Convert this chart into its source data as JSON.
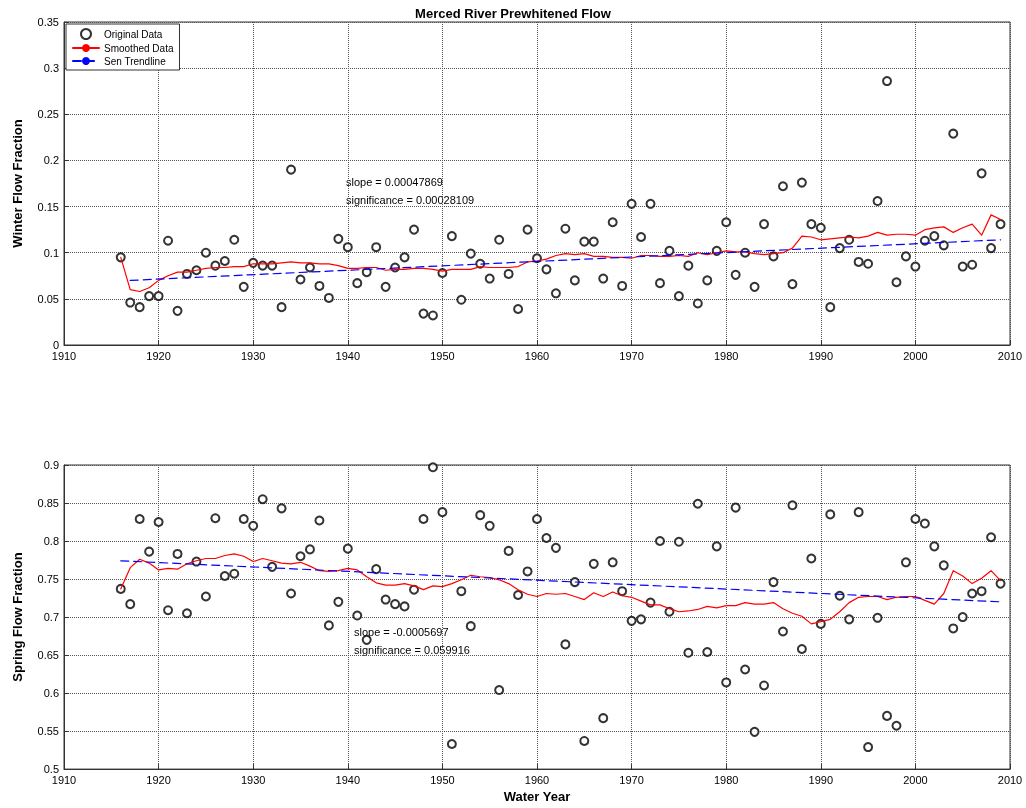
{
  "chart_data": [
    {
      "type": "scatter",
      "title": "Merced River Prewhitened Flow",
      "ylabel": "Winter Flow Fraction",
      "x": [
        1916,
        1917,
        1918,
        1919,
        1920,
        1921,
        1922,
        1923,
        1924,
        1925,
        1926,
        1927,
        1928,
        1929,
        1930,
        1931,
        1932,
        1933,
        1934,
        1935,
        1936,
        1937,
        1938,
        1939,
        1940,
        1941,
        1942,
        1943,
        1944,
        1945,
        1946,
        1947,
        1948,
        1949,
        1950,
        1951,
        1952,
        1953,
        1954,
        1955,
        1956,
        1957,
        1958,
        1959,
        1960,
        1961,
        1962,
        1963,
        1964,
        1965,
        1966,
        1967,
        1968,
        1969,
        1970,
        1971,
        1972,
        1973,
        1974,
        1975,
        1976,
        1977,
        1978,
        1979,
        1980,
        1981,
        1982,
        1983,
        1984,
        1985,
        1986,
        1987,
        1988,
        1989,
        1990,
        1991,
        1992,
        1993,
        1994,
        1995,
        1996,
        1997,
        1998,
        1999,
        2000,
        2001,
        2002,
        2003,
        2004,
        2005,
        2006,
        2007,
        2008,
        2009
      ],
      "series": [
        {
          "name": "Original Data",
          "marker": "circle",
          "color": "#000000",
          "values": [
            0.095,
            0.046,
            0.041,
            0.053,
            0.053,
            0.113,
            0.037,
            0.077,
            0.081,
            0.1,
            0.086,
            0.091,
            0.114,
            0.063,
            0.089,
            0.086,
            0.086,
            0.041,
            0.19,
            0.071,
            0.084,
            0.064,
            0.051,
            0.115,
            0.106,
            0.067,
            0.079,
            0.106,
            0.063,
            0.084,
            0.095,
            0.125,
            0.034,
            0.032,
            0.078,
            0.118,
            0.049,
            0.099,
            0.088,
            0.072,
            0.114,
            0.077,
            0.039,
            0.125,
            0.094,
            0.082,
            0.056,
            0.126,
            0.07,
            0.112,
            0.112,
            0.072,
            0.133,
            0.064,
            0.153,
            0.117,
            0.153,
            0.067,
            0.102,
            0.053,
            0.086,
            0.045,
            0.07,
            0.102,
            0.133,
            0.076,
            0.1,
            0.063,
            0.131,
            0.096,
            0.172,
            0.066,
            0.176,
            0.131,
            0.127,
            0.041,
            0.105,
            0.114,
            0.09,
            0.088,
            0.156,
            0.286,
            0.068,
            0.096,
            0.085,
            0.113,
            0.118,
            0.108,
            0.229,
            0.085,
            0.087,
            0.186,
            0.105,
            0.131
          ]
        },
        {
          "name": "Smoothed Data",
          "type": "line",
          "marker": "none",
          "line_style": "solid",
          "color": "#ff0000",
          "values": [
            0.095,
            0.06,
            0.058,
            0.062,
            0.07,
            0.075,
            0.079,
            0.079,
            0.081,
            0.083,
            0.084,
            0.084,
            0.085,
            0.085,
            0.088,
            0.088,
            0.088,
            0.089,
            0.09,
            0.089,
            0.089,
            0.088,
            0.088,
            0.086,
            0.083,
            0.083,
            0.084,
            0.084,
            0.081,
            0.082,
            0.082,
            0.083,
            0.083,
            0.082,
            0.08,
            0.082,
            0.082,
            0.082,
            0.085,
            0.084,
            0.084,
            0.084,
            0.085,
            0.09,
            0.091,
            0.093,
            0.097,
            0.099,
            0.098,
            0.099,
            0.096,
            0.096,
            0.095,
            0.095,
            0.094,
            0.097,
            0.097,
            0.096,
            0.096,
            0.097,
            0.096,
            0.1,
            0.098,
            0.1,
            0.102,
            0.101,
            0.101,
            0.099,
            0.098,
            0.099,
            0.1,
            0.105,
            0.118,
            0.117,
            0.114,
            0.115,
            0.116,
            0.117,
            0.116,
            0.118,
            0.122,
            0.119,
            0.12,
            0.12,
            0.119,
            0.125,
            0.127,
            0.128,
            0.122,
            0.127,
            0.131,
            0.119,
            0.141,
            0.136
          ]
        },
        {
          "name": "Sen Trendline",
          "type": "line",
          "marker": "none",
          "line_style": "dashed",
          "color": "#0000ff",
          "x": [
            1917,
            2009
          ],
          "values": [
            0.07,
            0.114
          ]
        }
      ],
      "xlim": [
        1910,
        2010
      ],
      "xticks": [
        1910,
        1920,
        1930,
        1940,
        1950,
        1960,
        1970,
        1980,
        1990,
        2000,
        2010
      ],
      "ylim": [
        0,
        0.35
      ],
      "yticks": [
        0,
        0.05,
        0.1,
        0.15,
        0.2,
        0.25,
        0.3,
        0.35
      ],
      "grid": true,
      "legend": "top left",
      "annotations": [
        "slope = 0.00047869",
        "significance = 0.00028109"
      ]
    },
    {
      "type": "scatter",
      "xlabel": "Water Year",
      "ylabel": "Spring Flow Fraction",
      "x": [
        1916,
        1917,
        1918,
        1919,
        1920,
        1921,
        1922,
        1923,
        1924,
        1925,
        1926,
        1927,
        1928,
        1929,
        1930,
        1931,
        1932,
        1933,
        1934,
        1935,
        1936,
        1937,
        1938,
        1939,
        1940,
        1941,
        1942,
        1943,
        1944,
        1945,
        1946,
        1947,
        1948,
        1949,
        1950,
        1951,
        1952,
        1953,
        1954,
        1955,
        1956,
        1957,
        1958,
        1959,
        1960,
        1961,
        1962,
        1963,
        1964,
        1965,
        1966,
        1967,
        1968,
        1969,
        1970,
        1971,
        1972,
        1973,
        1974,
        1975,
        1976,
        1977,
        1978,
        1979,
        1980,
        1981,
        1982,
        1983,
        1984,
        1985,
        1986,
        1987,
        1988,
        1989,
        1990,
        1991,
        1992,
        1993,
        1994,
        1995,
        1996,
        1997,
        1998,
        1999,
        2000,
        2001,
        2002,
        2003,
        2004,
        2005,
        2006,
        2007,
        2008,
        2009
      ],
      "series": [
        {
          "marker": "circle",
          "color": "#000000",
          "values": [
            0.737,
            0.717,
            0.829,
            0.786,
            0.825,
            0.709,
            0.783,
            0.705,
            0.773,
            0.727,
            0.83,
            0.754,
            0.757,
            0.829,
            0.82,
            0.855,
            0.766,
            0.843,
            0.731,
            0.78,
            0.789,
            0.827,
            0.689,
            0.72,
            0.79,
            0.702,
            0.67,
            0.763,
            0.723,
            0.717,
            0.714,
            0.736,
            0.829,
            0.897,
            0.838,
            0.533,
            0.734,
            0.688,
            0.834,
            0.82,
            0.604,
            0.787,
            0.729,
            0.76,
            0.829,
            0.804,
            0.791,
            0.664,
            0.746,
            0.537,
            0.77,
            0.567,
            0.772,
            0.734,
            0.695,
            0.697,
            0.719,
            0.8,
            0.707,
            0.799,
            0.653,
            0.849,
            0.654,
            0.793,
            0.614,
            0.844,
            0.631,
            0.549,
            0.61,
            0.746,
            0.681,
            0.847,
            0.658,
            0.777,
            0.691,
            0.835,
            0.728,
            0.697,
            0.838,
            0.529,
            0.699,
            0.57,
            0.557,
            0.772,
            0.829,
            0.823,
            0.793,
            0.768,
            0.685,
            0.7,
            0.731,
            0.734,
            0.805,
            0.744
          ]
        },
        {
          "type": "line",
          "marker": "none",
          "line_style": "solid",
          "color": "#ff0000",
          "values": [
            0.737,
            0.765,
            0.776,
            0.771,
            0.762,
            0.764,
            0.763,
            0.77,
            0.774,
            0.777,
            0.777,
            0.781,
            0.783,
            0.78,
            0.773,
            0.777,
            0.774,
            0.771,
            0.77,
            0.772,
            0.767,
            0.761,
            0.76,
            0.761,
            0.764,
            0.762,
            0.753,
            0.745,
            0.742,
            0.742,
            0.744,
            0.741,
            0.736,
            0.741,
            0.74,
            0.744,
            0.749,
            0.755,
            0.753,
            0.752,
            0.749,
            0.744,
            0.736,
            0.73,
            0.727,
            0.731,
            0.73,
            0.731,
            0.727,
            0.723,
            0.732,
            0.727,
            0.733,
            0.728,
            0.726,
            0.721,
            0.716,
            0.716,
            0.711,
            0.707,
            0.708,
            0.71,
            0.714,
            0.712,
            0.715,
            0.715,
            0.719,
            0.717,
            0.717,
            0.719,
            0.711,
            0.705,
            0.701,
            0.691,
            0.694,
            0.697,
            0.707,
            0.719,
            0.726,
            0.727,
            0.727,
            0.723,
            0.726,
            0.727,
            0.727,
            0.722,
            0.717,
            0.731,
            0.761,
            0.754,
            0.744,
            0.751,
            0.761,
            0.748
          ]
        },
        {
          "type": "line",
          "marker": "none",
          "line_style": "dashed",
          "color": "#0000ff",
          "x": [
            1916,
            2009
          ],
          "values": [
            0.774,
            0.72
          ]
        }
      ],
      "xlim": [
        1910,
        2010
      ],
      "xticks": [
        1910,
        1920,
        1930,
        1940,
        1950,
        1960,
        1970,
        1980,
        1990,
        2000,
        2010
      ],
      "ylim": [
        0.5,
        0.9
      ],
      "yticks": [
        0.5,
        0.55,
        0.6,
        0.65,
        0.7,
        0.75,
        0.8,
        0.85,
        0.9
      ],
      "grid": true,
      "annotations": [
        "slope = -0.0005697",
        "significance = 0.059916"
      ]
    }
  ]
}
